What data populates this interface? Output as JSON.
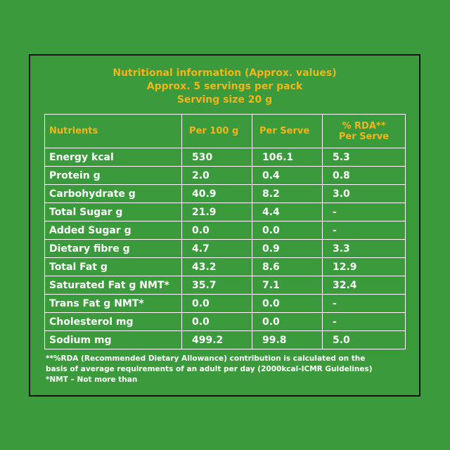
{
  "heading": {
    "line1": "Nutritional information (Approx. values)",
    "line2": "Approx. 5 servings per pack",
    "line3": "Serving size  20 g"
  },
  "table": {
    "headers": {
      "nutrients": "Nutrients",
      "per100": "Per 100 g",
      "perServe": "Per Serve",
      "rda_line1": "% RDA**",
      "rda_line2": "Per Serve"
    },
    "rows": [
      {
        "name": "Energy kcal",
        "per100": "530",
        "perServe": "106.1",
        "rda": "5.3"
      },
      {
        "name": "Protein g",
        "per100": "2.0",
        "perServe": "0.4",
        "rda": "0.8"
      },
      {
        "name": "Carbohydrate g",
        "per100": "40.9",
        "perServe": "8.2",
        "rda": "3.0"
      },
      {
        "name": "Total Sugar g",
        "per100": "21.9",
        "perServe": "4.4",
        "rda": "-"
      },
      {
        "name": "Added Sugar g",
        "per100": "0.0",
        "perServe": "0.0",
        "rda": "-"
      },
      {
        "name": "Dietary fibre g",
        "per100": "4.7",
        "perServe": "0.9",
        "rda": "3.3"
      },
      {
        "name": "Total Fat g",
        "per100": "43.2",
        "perServe": "8.6",
        "rda": "12.9"
      },
      {
        "name": "Saturated Fat g NMT*",
        "per100": "35.7",
        "perServe": "7.1",
        "rda": "32.4"
      },
      {
        "name": "Trans Fat g NMT*",
        "per100": "0.0",
        "perServe": "0.0",
        "rda": "-"
      },
      {
        "name": "Cholesterol mg",
        "per100": "0.0",
        "perServe": "0.0",
        "rda": "-"
      },
      {
        "name": "Sodium mg",
        "per100": "499.2",
        "perServe": "99.8",
        "rda": "5.0"
      }
    ]
  },
  "footnote": {
    "line1": "**%RDA (Recommended Dietary Allowance) contribution is calculated on the",
    "line2": "basis of average requirements of an adult per day (2000kcal-ICMR Guidelines)",
    "line3": "*NMT – Not more than"
  }
}
